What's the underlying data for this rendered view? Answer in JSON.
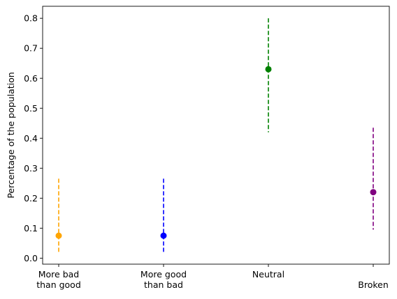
{
  "chart_data": {
    "type": "scatter",
    "title": "",
    "xlabel": "",
    "ylabel": "Percentage of the population",
    "ylim": [
      -0.02,
      0.84
    ],
    "yticks": [
      0.0,
      0.1,
      0.2,
      0.3,
      0.4,
      0.5,
      0.6,
      0.7,
      0.8
    ],
    "ytick_labels": [
      "0.0",
      "0.1",
      "0.2",
      "0.3",
      "0.4",
      "0.5",
      "0.6",
      "0.7",
      "0.8"
    ],
    "grid": false,
    "legend": "none",
    "categories": [
      [
        "More bad",
        "than good"
      ],
      [
        "More good",
        "than bad"
      ],
      [
        "Neutral"
      ],
      [
        "",
        "Broken"
      ]
    ],
    "points": [
      {
        "value": 0.075,
        "lower": 0.02,
        "upper": 0.265,
        "color": "#ffa500"
      },
      {
        "value": 0.075,
        "lower": 0.02,
        "upper": 0.265,
        "color": "#0000ff"
      },
      {
        "value": 0.63,
        "lower": 0.42,
        "upper": 0.8,
        "color": "#008000"
      },
      {
        "value": 0.22,
        "lower": 0.095,
        "upper": 0.435,
        "color": "#800080"
      }
    ]
  }
}
